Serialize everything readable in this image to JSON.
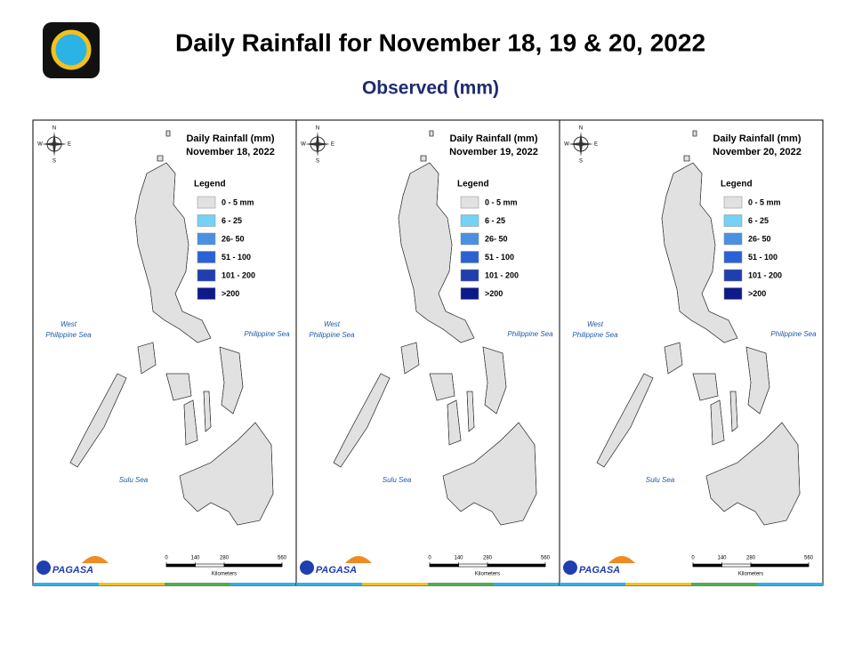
{
  "header": {
    "title": "Daily Rainfall for November 18, 19 & 20, 2022",
    "subtitle": "Observed (mm)"
  },
  "map_panel": {
    "title": "Daily Rainfall (mm)",
    "legend_title": "Legend",
    "legend": [
      {
        "label": "0 - 5 mm",
        "color": "#e1e1e1"
      },
      {
        "label": "6 - 25",
        "color": "#73d2f5"
      },
      {
        "label": "26- 50",
        "color": "#4a90e2"
      },
      {
        "label": "51 - 100",
        "color": "#2a62d6"
      },
      {
        "label": "101 - 200",
        "color": "#1f3fb0"
      },
      {
        "label": ">200",
        "color": "#0c1a8a"
      }
    ],
    "west_philippine_sea": [
      "West",
      "Philippine Sea"
    ],
    "philippine_sea": "Philippine Sea",
    "sulu_sea": "Sulu Sea",
    "compass": {
      "n": "N",
      "s": "S",
      "w": "W",
      "e": "E"
    },
    "scale_ticks": [
      0,
      140,
      280,
      560
    ],
    "scale_unit": "Kilometers",
    "logo": "PAGASA"
  },
  "panels": [
    {
      "date": "November 18, 2022"
    },
    {
      "date": "November 19, 2022"
    },
    {
      "date": "November 20, 2022"
    }
  ]
}
